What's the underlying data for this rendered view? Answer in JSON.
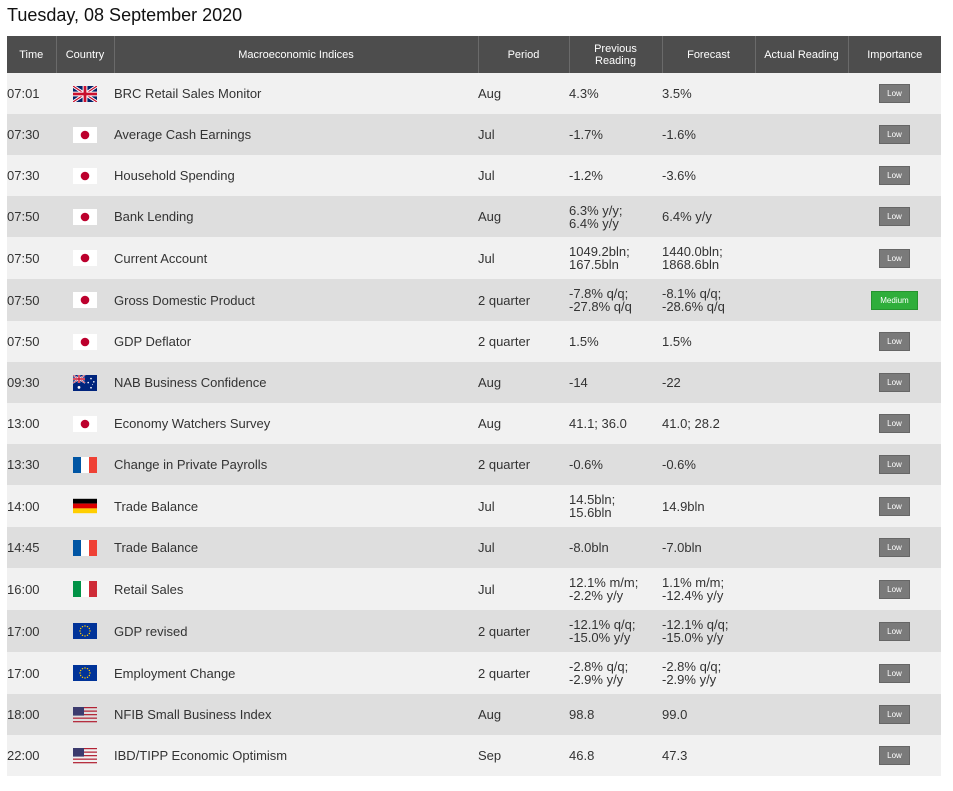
{
  "page": {
    "date_heading": "Tuesday, 08 September 2020"
  },
  "table": {
    "headers": {
      "time": "Time",
      "country": "Country",
      "indices": "Macroeconomic Indices",
      "period": "Period",
      "previous_line1": "Previous",
      "previous_line2": "Reading",
      "forecast": "Forecast",
      "actual": "Actual Reading",
      "importance": "Importance"
    },
    "rows": [
      {
        "time": "07:01",
        "flag": "uk-flag-icon",
        "name": "BRC Retail Sales Monitor",
        "period": "Aug",
        "prev1": "4.3%",
        "prev2": "",
        "fc1": "3.5%",
        "fc2": "",
        "actual": "",
        "importance": "Low"
      },
      {
        "time": "07:30",
        "flag": "japan-flag-icon",
        "name": "Average Cash Earnings",
        "period": "Jul",
        "prev1": "-1.7%",
        "prev2": "",
        "fc1": "-1.6%",
        "fc2": "",
        "actual": "",
        "importance": "Low"
      },
      {
        "time": "07:30",
        "flag": "japan-flag-icon",
        "name": "Household Spending",
        "period": "Jul",
        "prev1": "-1.2%",
        "prev2": "",
        "fc1": "-3.6%",
        "fc2": "",
        "actual": "",
        "importance": "Low"
      },
      {
        "time": "07:50",
        "flag": "japan-flag-icon",
        "name": "Bank Lending",
        "period": "Aug",
        "prev1": "6.3% y/y;",
        "prev2": "6.4% y/y",
        "fc1": "6.4% y/y",
        "fc2": "",
        "actual": "",
        "importance": "Low"
      },
      {
        "time": "07:50",
        "flag": "japan-flag-icon",
        "name": "Current Account",
        "period": "Jul",
        "prev1": "1049.2bln;",
        "prev2": "167.5bln",
        "fc1": "1440.0bln;",
        "fc2": "1868.6bln",
        "actual": "",
        "importance": "Low"
      },
      {
        "time": "07:50",
        "flag": "japan-flag-icon",
        "name": "Gross Domestic Product",
        "period": "2 quarter",
        "prev1": "-7.8% q/q;",
        "prev2": "-27.8% q/q",
        "fc1": "-8.1% q/q;",
        "fc2": "-28.6% q/q",
        "actual": "",
        "importance": "Medium"
      },
      {
        "time": "07:50",
        "flag": "japan-flag-icon",
        "name": "GDP Deflator",
        "period": "2 quarter",
        "prev1": "1.5%",
        "prev2": "",
        "fc1": "1.5%",
        "fc2": "",
        "actual": "",
        "importance": "Low"
      },
      {
        "time": "09:30",
        "flag": "australia-flag-icon",
        "name": "NAB Business Confidence",
        "period": "Aug",
        "prev1": "-14",
        "prev2": "",
        "fc1": "-22",
        "fc2": "",
        "actual": "",
        "importance": "Low"
      },
      {
        "time": "13:00",
        "flag": "japan-flag-icon",
        "name": "Economy Watchers Survey",
        "period": "Aug",
        "prev1": "41.1; 36.0",
        "prev2": "",
        "fc1": "41.0; 28.2",
        "fc2": "",
        "actual": "",
        "importance": "Low"
      },
      {
        "time": "13:30",
        "flag": "france-flag-icon",
        "name": "Change in Private Payrolls",
        "period": "2 quarter",
        "prev1": "-0.6%",
        "prev2": "",
        "fc1": "-0.6%",
        "fc2": "",
        "actual": "",
        "importance": "Low"
      },
      {
        "time": "14:00",
        "flag": "germany-flag-icon",
        "name": "Trade Balance",
        "period": "Jul",
        "prev1": "14.5bln;",
        "prev2": "15.6bln",
        "fc1": "14.9bln",
        "fc2": "",
        "actual": "",
        "importance": "Low"
      },
      {
        "time": "14:45",
        "flag": "france-flag-icon",
        "name": "Trade Balance",
        "period": "Jul",
        "prev1": "-8.0bln",
        "prev2": "",
        "fc1": "-7.0bln",
        "fc2": "",
        "actual": "",
        "importance": "Low"
      },
      {
        "time": "16:00",
        "flag": "italy-flag-icon",
        "name": "Retail Sales",
        "period": "Jul",
        "prev1": "12.1% m/m;",
        "prev2": "-2.2% y/y",
        "fc1": "1.1% m/m;",
        "fc2": "-12.4% y/y",
        "actual": "",
        "importance": "Low"
      },
      {
        "time": "17:00",
        "flag": "eu-flag-icon",
        "name": "GDP revised",
        "period": "2 quarter",
        "prev1": "-12.1% q/q;",
        "prev2": "-15.0% y/y",
        "fc1": "-12.1% q/q;",
        "fc2": "-15.0% y/y",
        "actual": "",
        "importance": "Low"
      },
      {
        "time": "17:00",
        "flag": "eu-flag-icon",
        "name": "Employment Change",
        "period": "2 quarter",
        "prev1": "-2.8% q/q;",
        "prev2": "-2.9% y/y",
        "fc1": "-2.8% q/q;",
        "fc2": "-2.9% y/y",
        "actual": "",
        "importance": "Low"
      },
      {
        "time": "18:00",
        "flag": "usa-flag-icon",
        "name": "NFIB Small Business Index",
        "period": "Aug",
        "prev1": "98.8",
        "prev2": "",
        "fc1": "99.0",
        "fc2": "",
        "actual": "",
        "importance": "Low"
      },
      {
        "time": "22:00",
        "flag": "usa-flag-icon",
        "name": "IBD/TIPP Economic Optimism",
        "period": "Sep",
        "prev1": "46.8",
        "prev2": "",
        "fc1": "47.3",
        "fc2": "",
        "actual": "",
        "importance": "Low"
      }
    ]
  },
  "colors": {
    "header_bg": "#4d4d4d",
    "row_light": "#f1f1f1",
    "row_dark": "#dedede",
    "badge_low": "#7a7a7a",
    "badge_medium": "#2fae3b"
  }
}
